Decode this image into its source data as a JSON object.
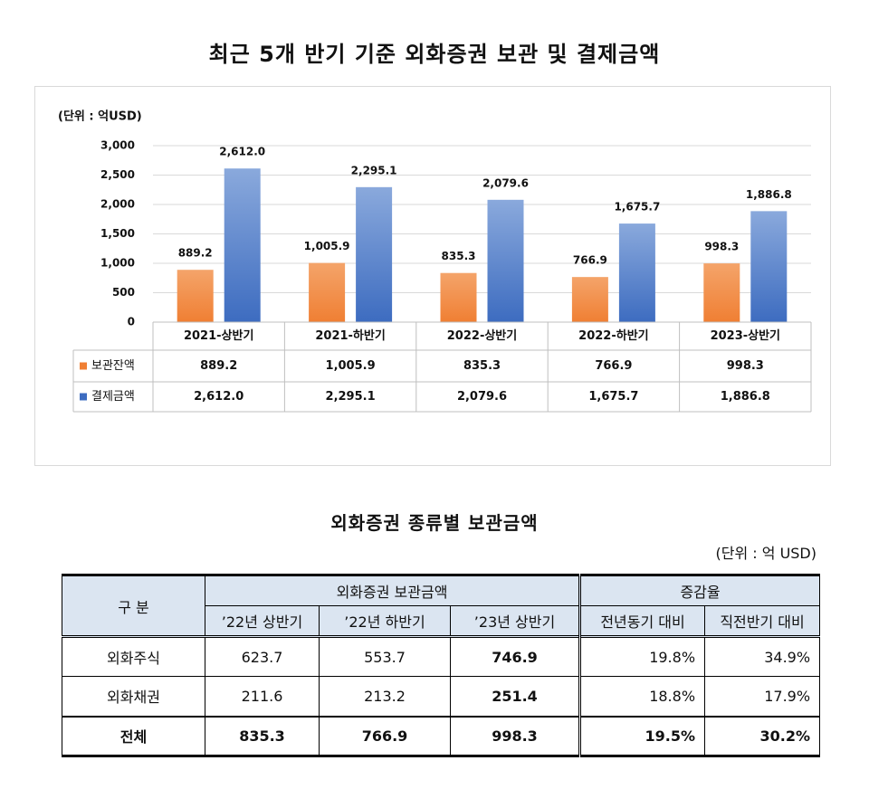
{
  "chart_data": {
    "type": "bar",
    "title": "최근 5개 반기 기준 외화증권 보관 및 결제금액",
    "unit_label": "(단위 : 억USD)",
    "categories": [
      "2021-상반기",
      "2021-하반기",
      "2022-상반기",
      "2022-하반기",
      "2023-상반기"
    ],
    "series": [
      {
        "name": "보관잔액",
        "values": [
          889.2,
          1005.9,
          835.3,
          766.9,
          998.3
        ],
        "labels": [
          "889.2",
          "1,005.9",
          "835.3",
          "766.9",
          "998.3"
        ],
        "color": "#f07f33"
      },
      {
        "name": "결제금액",
        "values": [
          2612.0,
          2295.1,
          2079.6,
          1675.7,
          1886.8
        ],
        "labels": [
          "2,612.0",
          "2,295.1",
          "2,079.6",
          "1,675.7",
          "1,886.8"
        ],
        "color": "#3d6cc0"
      }
    ],
    "ylim": [
      0,
      3000
    ],
    "yticks": [
      0,
      500,
      1000,
      1500,
      2000,
      2500,
      3000
    ],
    "ytick_labels": [
      "0",
      "500",
      "1,000",
      "1,500",
      "2,000",
      "2,500",
      "3,000"
    ],
    "grid": true,
    "legend": "data-table"
  },
  "table": {
    "title": "외화증권 종류별 보관금액",
    "unit": "(단위 : 억 USD)",
    "header_category": "구 분",
    "header_group_holdings": "외화증권 보관금액",
    "header_group_rate": "증감율",
    "columns": [
      "’22년 상반기",
      "’22년 하반기",
      "’23년 상반기",
      "전년동기 대비",
      "직전반기 대비"
    ],
    "rows": [
      {
        "label": "외화주식",
        "values": [
          "623.7",
          "553.7",
          "746.9",
          "19.8%",
          "34.9%"
        ]
      },
      {
        "label": "외화채권",
        "values": [
          "211.6",
          "213.2",
          "251.4",
          "18.8%",
          "17.9%"
        ]
      },
      {
        "label": "전체",
        "values": [
          "835.3",
          "766.9",
          "998.3",
          "19.5%",
          "30.2%"
        ]
      }
    ]
  }
}
